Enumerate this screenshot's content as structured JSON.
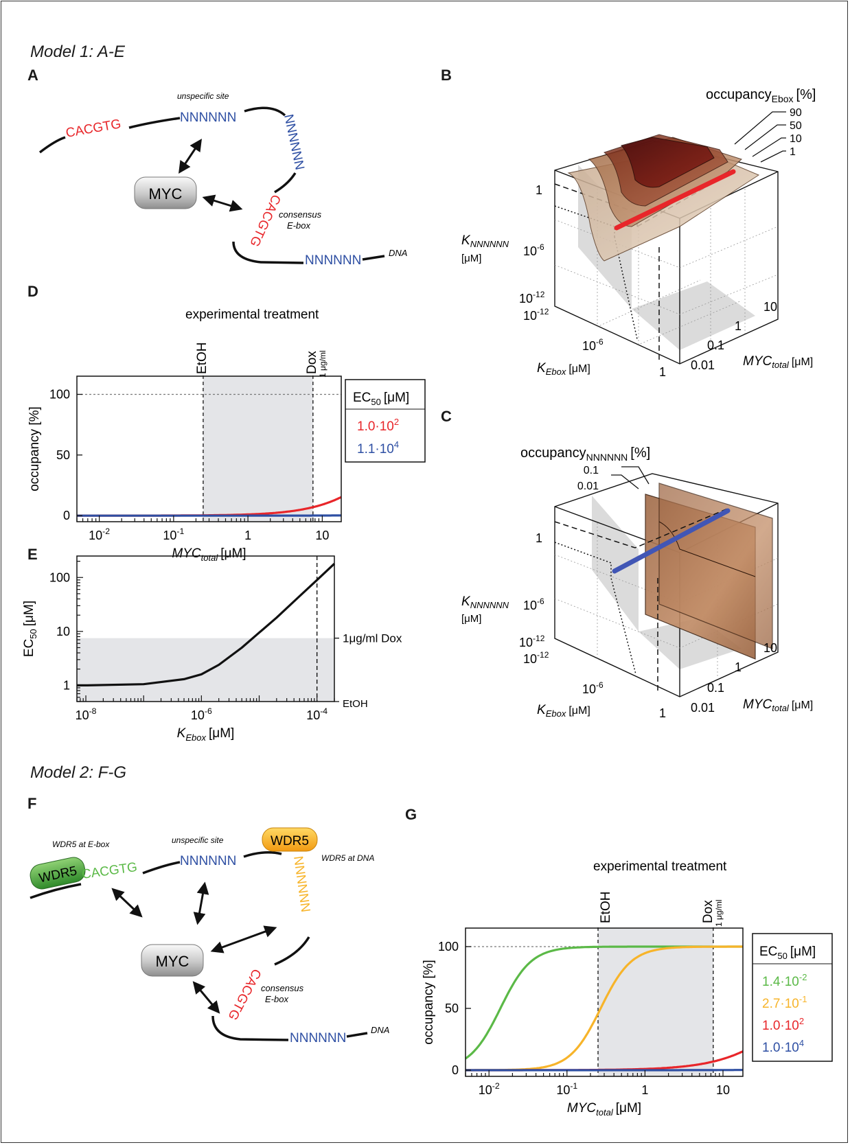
{
  "model1": {
    "title": "Model 1: A-E"
  },
  "model2": {
    "title": "Model 2: F-G"
  },
  "panels": {
    "A": "A",
    "B": "B",
    "C": "C",
    "D": "D",
    "E": "E",
    "F": "F",
    "G": "G"
  },
  "diagramA": {
    "seq_ebox1": "CACGTG",
    "seq_unspecific": "NNNNNN",
    "seq_vertical": "NNNNNN",
    "seq_ebox2": "CACGTG",
    "seq_dna": "NNNNNN",
    "label_unspecific": "unspecific site",
    "label_consensus": "consensus",
    "label_ebox": "E-box",
    "label_dna": "DNA",
    "myc": "MYC"
  },
  "diagramF": {
    "seq_ebox1": "CACGTG",
    "seq_unspecific": "NNNNNN",
    "seq_vertical": "NNNNNN",
    "seq_ebox2": "CACGTG",
    "seq_dna": "NNNNNN",
    "label_wdr5_ebox": "WDR5 at E-box",
    "label_unspecific": "unspecific site",
    "label_wdr5_dna": "WDR5 at DNA",
    "label_consensus": "consensus",
    "label_ebox": "E-box",
    "label_dna": "DNA",
    "wdr5_left": "WDR5",
    "wdr5_top": "WDR5",
    "myc": "MYC"
  },
  "plotB": {
    "legend_title": "occupancy",
    "legend_sub": "Ebox",
    "legend_unit": "[%]",
    "levels": [
      "90",
      "50",
      "10",
      "1"
    ],
    "zlabel": "K",
    "zlabel_sub": "NNNNNN",
    "zlabel_unit": "[μM]",
    "zticks": [
      {
        "base": "1",
        "exp": ""
      },
      {
        "base": "10",
        "exp": "-6"
      },
      {
        "base": "10",
        "exp": "-12"
      }
    ],
    "xticks": [
      {
        "base": "10",
        "exp": "-12"
      },
      {
        "base": "10",
        "exp": "-6"
      },
      {
        "base": "1",
        "exp": ""
      }
    ],
    "xlabel": "K",
    "xlabel_sub": "Ebox",
    "xlabel_unit": "[μM]",
    "yticks": [
      "10",
      "1",
      "0.1",
      "0.01"
    ],
    "ylabel": "MYC",
    "ylabel_sub": "total",
    "ylabel_unit": "[μM]"
  },
  "plotC": {
    "legend_title": "occupancy",
    "legend_sub": "NNNNNN",
    "legend_unit": "[%]",
    "levels": [
      "0.1",
      "0.01"
    ],
    "zlabel": "K",
    "zlabel_sub": "NNNNNN",
    "zlabel_unit": "[μM]",
    "zticks": [
      {
        "base": "1",
        "exp": ""
      },
      {
        "base": "10",
        "exp": "-6"
      },
      {
        "base": "10",
        "exp": "-12"
      }
    ],
    "xticks": [
      {
        "base": "10",
        "exp": "-12"
      },
      {
        "base": "10",
        "exp": "-6"
      },
      {
        "base": "1",
        "exp": ""
      }
    ],
    "xlabel": "K",
    "xlabel_sub": "Ebox",
    "xlabel_unit": "[μM]",
    "yticks": [
      "10",
      "1",
      "0.1",
      "0.01"
    ],
    "ylabel": "MYC",
    "ylabel_sub": "total",
    "ylabel_unit": "[μM]"
  },
  "treatD": {
    "title": "experimental treatment",
    "etoh": "EtOH",
    "dox": "Dox",
    "dox_sub": "1 μg/ml"
  },
  "treatG": {
    "title": "experimental treatment",
    "etoh": "EtOH",
    "dox": "Dox",
    "dox_sub": "1 μg/ml"
  },
  "tableD": {
    "header": "EC",
    "header_sub": "50",
    "header_unit": "[μM]",
    "rows": [
      {
        "base": "1.0·10",
        "exp": "2",
        "color": "#e8262a"
      },
      {
        "base": "1.1·10",
        "exp": "4",
        "color": "#2e4fa3"
      }
    ]
  },
  "tableG": {
    "header": "EC",
    "header_sub": "50",
    "header_unit": "[μM]",
    "rows": [
      {
        "base": "1.4·10",
        "exp": "-2",
        "color": "#5bb947"
      },
      {
        "base": "2.7·10",
        "exp": "-1",
        "color": "#f7b42a"
      },
      {
        "base": "1.0·10",
        "exp": "2",
        "color": "#e8262a"
      },
      {
        "base": "1.0·10",
        "exp": "4",
        "color": "#2e4fa3"
      }
    ]
  },
  "chart_data": [
    {
      "id": "D",
      "type": "line",
      "xscale": "log",
      "xlim": [
        0.005,
        18
      ],
      "ylim": [
        -5,
        115
      ],
      "xlabel": "MYC",
      "xlabel_sub": "total",
      "xlabel_unit": "[μM]",
      "ylabel": "occupancy [%]",
      "xtick_labels": [
        {
          "v": 0.01,
          "base": "10",
          "exp": "-2"
        },
        {
          "v": 0.1,
          "base": "10",
          "exp": "-1"
        },
        {
          "v": 1,
          "base": "1",
          "exp": ""
        },
        {
          "v": 10,
          "base": "10",
          "exp": ""
        }
      ],
      "ytick_labels": [
        {
          "v": 0,
          "t": "0"
        },
        {
          "v": 50,
          "t": "50"
        },
        {
          "v": 100,
          "t": "100"
        }
      ],
      "shaded_x": [
        0.25,
        7.5
      ],
      "refline_y": 100,
      "series": [
        {
          "ec50": 100,
          "color": "#e8262a"
        },
        {
          "ec50": 11000,
          "color": "#2e4fa3"
        }
      ]
    },
    {
      "id": "E",
      "type": "line",
      "xscale": "log",
      "yscale": "log",
      "xlim": [
        7e-09,
        0.0002
      ],
      "ylim": [
        0.5,
        250
      ],
      "xlabel": "K",
      "xlabel_sub": "Ebox",
      "xlabel_unit": "[μM]",
      "ylabel": "EC",
      "ylabel_sub": "50",
      "ylabel_unit": "[μM]",
      "xtick_labels": [
        {
          "v": 1e-08,
          "base": "10",
          "exp": "-8"
        },
        {
          "v": 1e-06,
          "base": "10",
          "exp": "-6"
        },
        {
          "v": 0.0001,
          "base": "10",
          "exp": "-4"
        }
      ],
      "ytick_labels": [
        {
          "v": 1,
          "t": "1"
        },
        {
          "v": 10,
          "t": "10"
        },
        {
          "v": 100,
          "t": "100"
        }
      ],
      "shaded_y": [
        0.5,
        7.5
      ],
      "vline_x": 0.0001,
      "right_labels": [
        {
          "v": 7.5,
          "t": "1μg/ml Dox"
        },
        {
          "v": 0.5,
          "t": "EtOH"
        }
      ],
      "series": [
        {
          "color": "#111111",
          "x": [
            7e-09,
            1e-08,
            1e-07,
            5e-07,
            1e-06,
            2e-06,
            5e-06,
            1e-05,
            2e-05,
            5e-05,
            0.0001,
            0.0002
          ],
          "y": [
            1.0,
            1.0,
            1.05,
            1.3,
            1.6,
            2.4,
            5.0,
            9.5,
            18,
            45,
            90,
            180
          ]
        }
      ]
    },
    {
      "id": "G",
      "type": "line",
      "xscale": "log",
      "xlim": [
        0.005,
        18
      ],
      "ylim": [
        -5,
        115
      ],
      "xlabel": "MYC",
      "xlabel_sub": "total",
      "xlabel_unit": "[μM]",
      "ylabel": "occupancy [%]",
      "xtick_labels": [
        {
          "v": 0.01,
          "base": "10",
          "exp": "-2"
        },
        {
          "v": 0.1,
          "base": "10",
          "exp": "-1"
        },
        {
          "v": 1,
          "base": "1",
          "exp": ""
        },
        {
          "v": 10,
          "base": "10",
          "exp": ""
        }
      ],
      "ytick_labels": [
        {
          "v": 0,
          "t": "0"
        },
        {
          "v": 50,
          "t": "50"
        },
        {
          "v": 100,
          "t": "100"
        }
      ],
      "shaded_x": [
        0.25,
        7.5
      ],
      "refline_y": 100,
      "series": [
        {
          "ec50": 0.014,
          "color": "#5bb947"
        },
        {
          "ec50": 0.27,
          "color": "#f7b42a"
        },
        {
          "ec50": 100,
          "color": "#e8262a"
        },
        {
          "ec50": 10000,
          "color": "#2e4fa3"
        }
      ]
    }
  ]
}
